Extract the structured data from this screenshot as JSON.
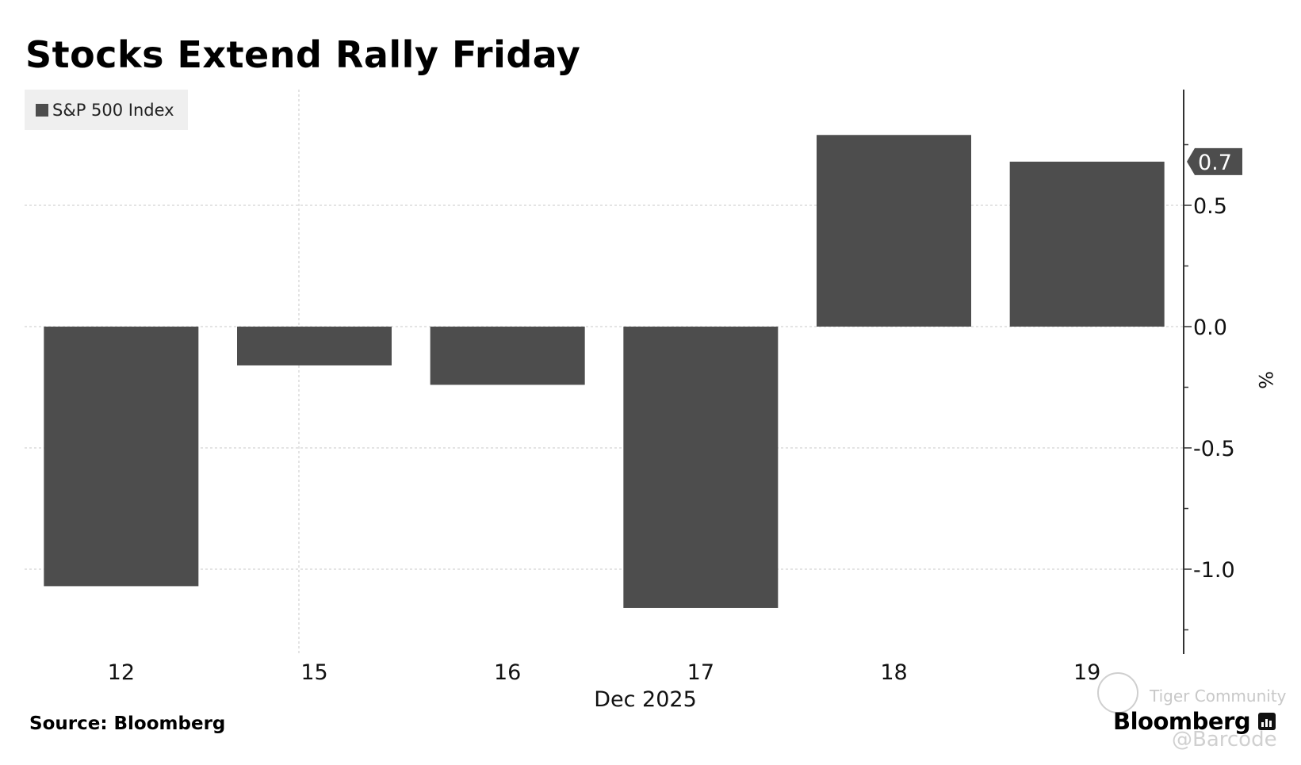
{
  "title": "Stocks Extend Rally Friday",
  "legend": {
    "label": "S&P 500 Index"
  },
  "source": "Source: Bloomberg",
  "brand": "Bloomberg",
  "watermark": {
    "name": "Tiger Community",
    "handle": "@Barcode"
  },
  "colors": {
    "bar": "#4d4d4d",
    "grid": "#c8c8c8",
    "axis": "#333333",
    "last_label_bg": "#4d4d4d"
  },
  "chart_data": {
    "type": "bar",
    "title": "Stocks Extend Rally Friday",
    "categories": [
      "12",
      "15",
      "16",
      "17",
      "18",
      "19"
    ],
    "x_period_label": "Dec 2025",
    "series": [
      {
        "name": "S&P 500 Index",
        "values": [
          -1.07,
          -0.16,
          -0.24,
          -1.16,
          0.79,
          0.68
        ]
      }
    ],
    "ylabel": "%",
    "ylim": [
      -1.35,
      0.98
    ],
    "yticks": [
      -1.0,
      -0.5,
      0.0,
      0.5
    ],
    "ytick_labels": [
      "-1.0",
      "-0.5",
      "0.0",
      "0.5"
    ],
    "last_value_label": "0.7",
    "grid": true,
    "legend_position": "top-left",
    "y_axis_side": "right"
  }
}
